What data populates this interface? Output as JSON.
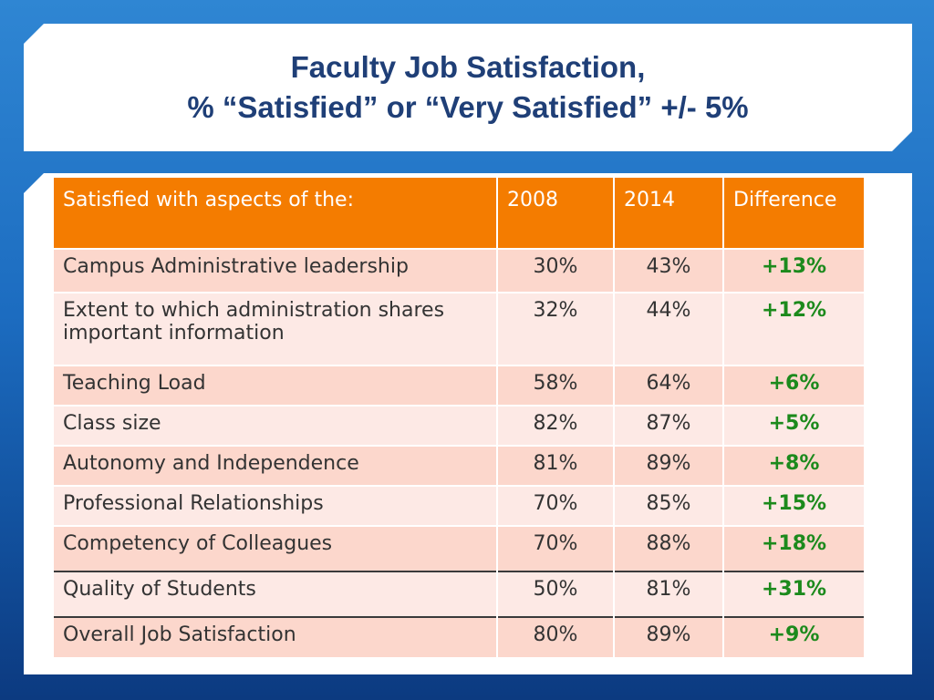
{
  "title": {
    "line1": "Faculty Job Satisfaction,",
    "line2": "% “Satisfied” or “Very Satisfied” +/- 5%"
  },
  "table": {
    "headers": [
      "Satisfied with aspects of the:",
      "2008",
      "2014",
      "Difference"
    ],
    "rows": [
      {
        "aspect": "Campus Administrative leadership",
        "y2008": "30%",
        "y2014": "43%",
        "diff": "+13%"
      },
      {
        "aspect": "Extent to which administration shares important information",
        "y2008": "32%",
        "y2014": "44%",
        "diff": "+12%"
      },
      {
        "aspect": "Teaching Load",
        "y2008": "58%",
        "y2014": "64%",
        "diff": "+6%"
      },
      {
        "aspect": "Class size",
        "y2008": "82%",
        "y2014": "87%",
        "diff": "+5%"
      },
      {
        "aspect": "Autonomy and Independence",
        "y2008": "81%",
        "y2014": "89%",
        "diff": "+8%"
      },
      {
        "aspect": "Professional Relationships",
        "y2008": "70%",
        "y2014": "85%",
        "diff": "+15%"
      },
      {
        "aspect": "Competency of Colleagues",
        "y2008": "70%",
        "y2014": "88%",
        "diff": "+18%"
      },
      {
        "aspect": "Quality of Students",
        "y2008": "50%",
        "y2014": "81%",
        "diff": "+31%"
      },
      {
        "aspect": "Overall Job Satisfaction",
        "y2008": "80%",
        "y2014": "89%",
        "diff": "+9%"
      }
    ]
  },
  "colors": {
    "header_bg": "#f47c00",
    "row_odd": "#fcd7cc",
    "row_even": "#fde9e5",
    "diff_text": "#1c8a1c",
    "title_text": "#1f3f77"
  }
}
